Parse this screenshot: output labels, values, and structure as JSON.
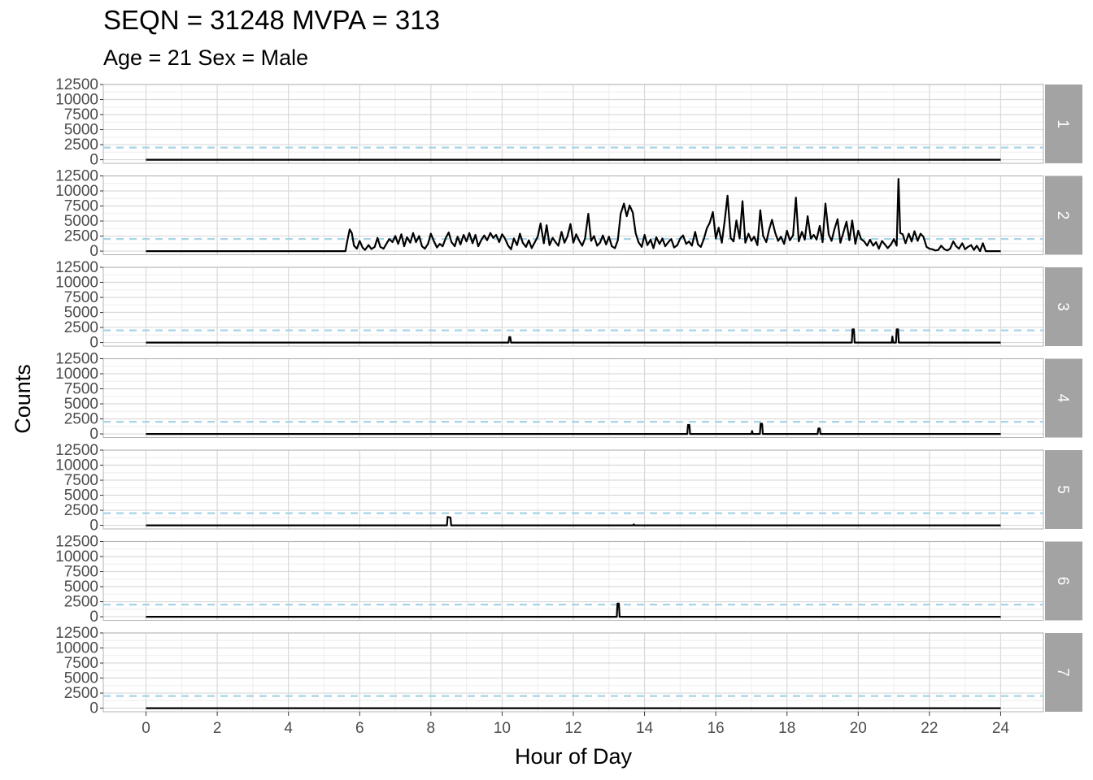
{
  "chart_data": {
    "type": "line",
    "title": "SEQN = 31248 MVPA = 313",
    "subtitle": "Age = 21 Sex = Male",
    "xlabel": "Hour of Day",
    "ylabel": "Counts",
    "xlim": [
      -1.2,
      25.2
    ],
    "ylim": [
      -600,
      12500
    ],
    "x_ticks": [
      0,
      2,
      4,
      6,
      8,
      10,
      12,
      14,
      16,
      18,
      20,
      22,
      24
    ],
    "y_ticks": [
      0,
      2500,
      5000,
      7500,
      10000,
      12500
    ],
    "threshold": 2020,
    "grid": true,
    "colors": {
      "line": "#000000",
      "threshold": "#a6d4e6",
      "strip": "#a3a3a3",
      "panel_border": "#b3b3b3",
      "grid_major": "#d9d9d9",
      "grid_minor": "#ededed"
    },
    "panels": [
      {
        "label": "1",
        "points": [
          [
            0,
            0
          ],
          [
            24,
            0
          ]
        ]
      },
      {
        "label": "2",
        "points": [
          [
            0,
            0
          ],
          [
            5.6,
            0
          ],
          [
            5.65,
            1600
          ],
          [
            5.72,
            3600
          ],
          [
            5.78,
            3000
          ],
          [
            5.84,
            900
          ],
          [
            5.92,
            400
          ],
          [
            6.0,
            1700
          ],
          [
            6.08,
            600
          ],
          [
            6.15,
            200
          ],
          [
            6.25,
            1000
          ],
          [
            6.33,
            350
          ],
          [
            6.42,
            700
          ],
          [
            6.5,
            2200
          ],
          [
            6.58,
            700
          ],
          [
            6.67,
            400
          ],
          [
            6.75,
            1200
          ],
          [
            6.83,
            2000
          ],
          [
            6.92,
            1500
          ],
          [
            7.0,
            2500
          ],
          [
            7.08,
            1200
          ],
          [
            7.17,
            2800
          ],
          [
            7.25,
            800
          ],
          [
            7.33,
            2300
          ],
          [
            7.42,
            1400
          ],
          [
            7.5,
            3000
          ],
          [
            7.58,
            1500
          ],
          [
            7.67,
            2500
          ],
          [
            7.75,
            800
          ],
          [
            7.83,
            400
          ],
          [
            7.92,
            1200
          ],
          [
            8.0,
            2900
          ],
          [
            8.08,
            1700
          ],
          [
            8.17,
            600
          ],
          [
            8.25,
            1200
          ],
          [
            8.33,
            800
          ],
          [
            8.42,
            2200
          ],
          [
            8.5,
            3100
          ],
          [
            8.58,
            1500
          ],
          [
            8.67,
            800
          ],
          [
            8.75,
            2400
          ],
          [
            8.83,
            1100
          ],
          [
            8.92,
            2700
          ],
          [
            9.0,
            1600
          ],
          [
            9.08,
            3000
          ],
          [
            9.17,
            1300
          ],
          [
            9.25,
            2700
          ],
          [
            9.33,
            800
          ],
          [
            9.42,
            1900
          ],
          [
            9.5,
            2600
          ],
          [
            9.58,
            1800
          ],
          [
            9.67,
            3000
          ],
          [
            9.75,
            2200
          ],
          [
            9.83,
            2700
          ],
          [
            9.92,
            1500
          ],
          [
            10.0,
            2800
          ],
          [
            10.08,
            2100
          ],
          [
            10.17,
            900
          ],
          [
            10.25,
            300
          ],
          [
            10.33,
            2100
          ],
          [
            10.42,
            1000
          ],
          [
            10.5,
            2900
          ],
          [
            10.58,
            1400
          ],
          [
            10.67,
            700
          ],
          [
            10.75,
            1800
          ],
          [
            10.83,
            500
          ],
          [
            10.92,
            1500
          ],
          [
            11.0,
            2400
          ],
          [
            11.08,
            4600
          ],
          [
            11.17,
            1300
          ],
          [
            11.25,
            4300
          ],
          [
            11.33,
            1000
          ],
          [
            11.42,
            2200
          ],
          [
            11.5,
            1500
          ],
          [
            11.58,
            900
          ],
          [
            11.67,
            3200
          ],
          [
            11.75,
            1400
          ],
          [
            11.83,
            2400
          ],
          [
            11.92,
            4500
          ],
          [
            12.0,
            1400
          ],
          [
            12.08,
            2800
          ],
          [
            12.17,
            1700
          ],
          [
            12.25,
            900
          ],
          [
            12.33,
            2100
          ],
          [
            12.42,
            6200
          ],
          [
            12.5,
            1700
          ],
          [
            12.58,
            2500
          ],
          [
            12.67,
            900
          ],
          [
            12.75,
            1400
          ],
          [
            12.83,
            2600
          ],
          [
            12.92,
            1100
          ],
          [
            13.0,
            2400
          ],
          [
            13.08,
            800
          ],
          [
            13.17,
            500
          ],
          [
            13.25,
            1800
          ],
          [
            13.33,
            6200
          ],
          [
            13.42,
            7900
          ],
          [
            13.5,
            5800
          ],
          [
            13.58,
            7600
          ],
          [
            13.67,
            6400
          ],
          [
            13.75,
            3000
          ],
          [
            13.83,
            1500
          ],
          [
            13.92,
            700
          ],
          [
            14.0,
            2700
          ],
          [
            14.08,
            1000
          ],
          [
            14.17,
            1900
          ],
          [
            14.25,
            500
          ],
          [
            14.33,
            2300
          ],
          [
            14.42,
            1200
          ],
          [
            14.5,
            2100
          ],
          [
            14.58,
            800
          ],
          [
            14.67,
            1500
          ],
          [
            14.75,
            2000
          ],
          [
            14.83,
            600
          ],
          [
            14.92,
            1000
          ],
          [
            15.0,
            2100
          ],
          [
            15.08,
            2600
          ],
          [
            15.17,
            1200
          ],
          [
            15.25,
            1600
          ],
          [
            15.33,
            900
          ],
          [
            15.42,
            3200
          ],
          [
            15.5,
            1100
          ],
          [
            15.58,
            700
          ],
          [
            15.67,
            2100
          ],
          [
            15.75,
            3800
          ],
          [
            15.83,
            4700
          ],
          [
            15.92,
            6500
          ],
          [
            16.0,
            2100
          ],
          [
            16.08,
            3900
          ],
          [
            16.17,
            1400
          ],
          [
            16.25,
            5000
          ],
          [
            16.33,
            9200
          ],
          [
            16.42,
            2200
          ],
          [
            16.5,
            1600
          ],
          [
            16.58,
            5100
          ],
          [
            16.67,
            2100
          ],
          [
            16.75,
            8300
          ],
          [
            16.83,
            1400
          ],
          [
            16.92,
            2900
          ],
          [
            17.0,
            1700
          ],
          [
            17.08,
            2400
          ],
          [
            17.17,
            1000
          ],
          [
            17.25,
            6800
          ],
          [
            17.33,
            2500
          ],
          [
            17.42,
            1500
          ],
          [
            17.5,
            3600
          ],
          [
            17.58,
            5200
          ],
          [
            17.67,
            3000
          ],
          [
            17.75,
            1700
          ],
          [
            17.83,
            2400
          ],
          [
            17.92,
            1200
          ],
          [
            18.0,
            3400
          ],
          [
            18.08,
            1800
          ],
          [
            18.17,
            2600
          ],
          [
            18.25,
            8900
          ],
          [
            18.33,
            1600
          ],
          [
            18.42,
            3200
          ],
          [
            18.5,
            1900
          ],
          [
            18.58,
            5800
          ],
          [
            18.67,
            2100
          ],
          [
            18.75,
            2700
          ],
          [
            18.83,
            1900
          ],
          [
            18.92,
            4200
          ],
          [
            19.0,
            1500
          ],
          [
            19.08,
            7900
          ],
          [
            19.17,
            2800
          ],
          [
            19.25,
            1700
          ],
          [
            19.33,
            3600
          ],
          [
            19.42,
            5300
          ],
          [
            19.5,
            1400
          ],
          [
            19.58,
            3000
          ],
          [
            19.67,
            4900
          ],
          [
            19.75,
            1800
          ],
          [
            19.83,
            5100
          ],
          [
            19.92,
            1200
          ],
          [
            20.0,
            3400
          ],
          [
            20.08,
            2000
          ],
          [
            20.17,
            1600
          ],
          [
            20.25,
            900
          ],
          [
            20.33,
            1900
          ],
          [
            20.42,
            900
          ],
          [
            20.5,
            1500
          ],
          [
            20.58,
            400
          ],
          [
            20.67,
            1700
          ],
          [
            20.75,
            1100
          ],
          [
            20.83,
            500
          ],
          [
            20.92,
            1100
          ],
          [
            21.0,
            2000
          ],
          [
            21.08,
            900
          ],
          [
            21.13,
            12000
          ],
          [
            21.18,
            3000
          ],
          [
            21.25,
            2800
          ],
          [
            21.33,
            1300
          ],
          [
            21.42,
            2900
          ],
          [
            21.5,
            1600
          ],
          [
            21.58,
            3300
          ],
          [
            21.67,
            1700
          ],
          [
            21.75,
            2900
          ],
          [
            21.83,
            2400
          ],
          [
            21.92,
            700
          ],
          [
            22.0,
            400
          ],
          [
            22.08,
            300
          ],
          [
            22.17,
            100
          ],
          [
            22.25,
            200
          ],
          [
            22.33,
            900
          ],
          [
            22.42,
            300
          ],
          [
            22.5,
            100
          ],
          [
            22.58,
            400
          ],
          [
            22.67,
            1600
          ],
          [
            22.75,
            800
          ],
          [
            22.83,
            400
          ],
          [
            22.92,
            1300
          ],
          [
            23.0,
            300
          ],
          [
            23.08,
            700
          ],
          [
            23.17,
            1000
          ],
          [
            23.25,
            200
          ],
          [
            23.33,
            900
          ],
          [
            23.42,
            0
          ],
          [
            23.5,
            1300
          ],
          [
            23.58,
            0
          ],
          [
            24,
            0
          ]
        ]
      },
      {
        "label": "3",
        "points": [
          [
            0,
            0
          ],
          [
            10.18,
            0
          ],
          [
            10.2,
            900
          ],
          [
            10.23,
            900
          ],
          [
            10.25,
            0
          ],
          [
            19.82,
            0
          ],
          [
            19.84,
            2200
          ],
          [
            19.88,
            2200
          ],
          [
            19.9,
            0
          ],
          [
            20.94,
            0
          ],
          [
            20.96,
            1000
          ],
          [
            20.98,
            0
          ],
          [
            21.06,
            0
          ],
          [
            21.08,
            2200
          ],
          [
            21.12,
            2200
          ],
          [
            21.14,
            0
          ],
          [
            24,
            0
          ]
        ]
      },
      {
        "label": "4",
        "points": [
          [
            0,
            0
          ],
          [
            15.2,
            0
          ],
          [
            15.22,
            1500
          ],
          [
            15.26,
            1500
          ],
          [
            15.28,
            0
          ],
          [
            17.0,
            0
          ],
          [
            17.02,
            500
          ],
          [
            17.04,
            0
          ],
          [
            17.24,
            0
          ],
          [
            17.26,
            1700
          ],
          [
            17.3,
            1700
          ],
          [
            17.32,
            0
          ],
          [
            18.86,
            0
          ],
          [
            18.88,
            900
          ],
          [
            18.92,
            900
          ],
          [
            18.94,
            0
          ],
          [
            24,
            0
          ]
        ]
      },
      {
        "label": "5",
        "points": [
          [
            0,
            0
          ],
          [
            8.45,
            0
          ],
          [
            8.47,
            1400
          ],
          [
            8.55,
            1300
          ],
          [
            8.57,
            0
          ],
          [
            13.68,
            0
          ],
          [
            13.7,
            150
          ],
          [
            13.72,
            0
          ],
          [
            24,
            0
          ]
        ]
      },
      {
        "label": "6",
        "points": [
          [
            0,
            0
          ],
          [
            13.22,
            0
          ],
          [
            13.24,
            2200
          ],
          [
            13.28,
            2200
          ],
          [
            13.3,
            0
          ],
          [
            24,
            0
          ]
        ]
      },
      {
        "label": "7",
        "points": [
          [
            0,
            0
          ],
          [
            24,
            0
          ]
        ]
      }
    ]
  }
}
